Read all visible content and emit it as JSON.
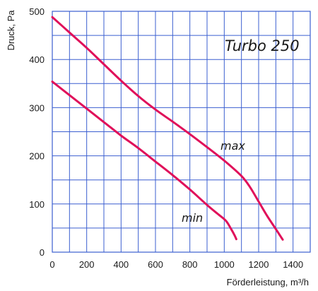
{
  "chart_data": {
    "type": "line",
    "title": "Turbo 250",
    "xlabel": "Förderleistung, m³/h",
    "ylabel": "Druck, Pa",
    "xlim": [
      0,
      1500
    ],
    "ylim": [
      0,
      500
    ],
    "x_ticks": [
      "0",
      "200",
      "400",
      "600",
      "800",
      "1000",
      "1200",
      "1400"
    ],
    "y_ticks": [
      "0",
      "100",
      "200",
      "300",
      "400",
      "500"
    ],
    "grid": true,
    "series": [
      {
        "name": "max",
        "color": "#e0105a",
        "points": [
          [
            0,
            488
          ],
          [
            100,
            456
          ],
          [
            200,
            424
          ],
          [
            300,
            390
          ],
          [
            400,
            356
          ],
          [
            500,
            324
          ],
          [
            600,
            296
          ],
          [
            700,
            271
          ],
          [
            800,
            245
          ],
          [
            900,
            218
          ],
          [
            1000,
            190
          ],
          [
            1100,
            158
          ],
          [
            1150,
            135
          ],
          [
            1200,
            105
          ],
          [
            1250,
            75
          ],
          [
            1300,
            48
          ],
          [
            1340,
            26
          ]
        ]
      },
      {
        "name": "min",
        "color": "#e0105a",
        "points": [
          [
            0,
            354
          ],
          [
            100,
            326
          ],
          [
            200,
            298
          ],
          [
            300,
            270
          ],
          [
            400,
            242
          ],
          [
            500,
            216
          ],
          [
            600,
            188
          ],
          [
            700,
            160
          ],
          [
            800,
            130
          ],
          [
            900,
            98
          ],
          [
            960,
            80
          ],
          [
            1010,
            65
          ],
          [
            1040,
            48
          ],
          [
            1060,
            35
          ],
          [
            1070,
            27
          ]
        ]
      }
    ]
  }
}
